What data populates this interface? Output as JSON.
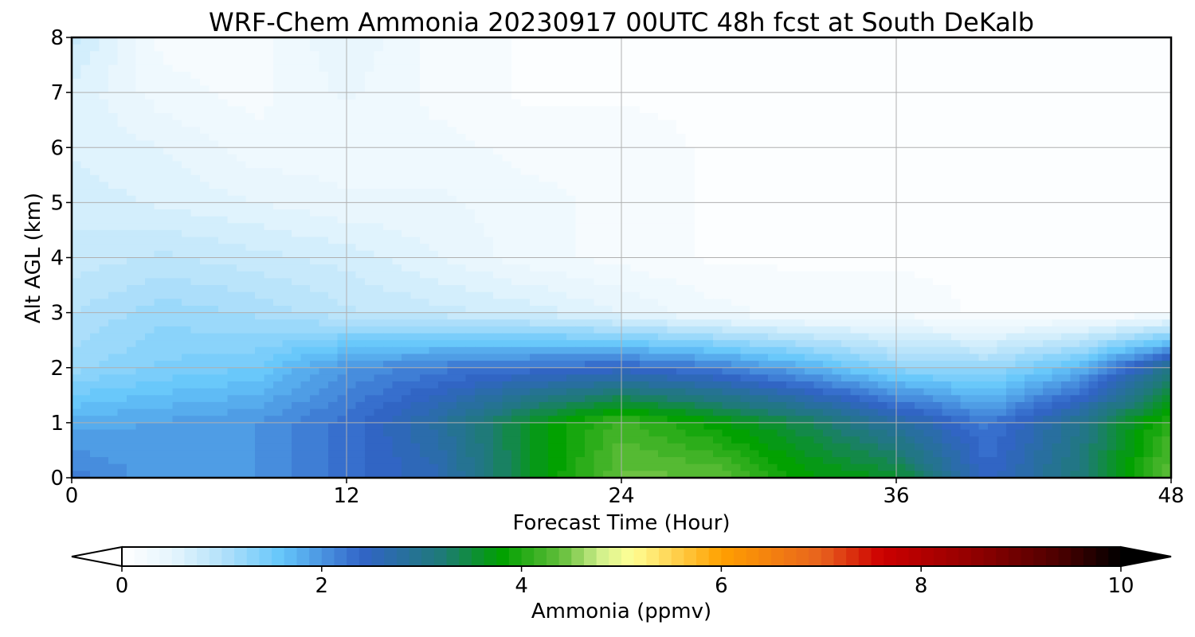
{
  "chart_data": {
    "type": "heatmap",
    "title": "WRF-Chem Ammonia  20230917 00UTC 48h fcst at South DeKalb",
    "xlabel": "Forecast Time (Hour)",
    "ylabel": "Alt AGL (km)",
    "xlim": [
      0,
      48
    ],
    "ylim": [
      0,
      8
    ],
    "x_ticks": [
      0,
      12,
      24,
      36,
      48
    ],
    "y_ticks": [
      0,
      1,
      2,
      3,
      4,
      5,
      6,
      7,
      8
    ],
    "grid": true,
    "x": [
      0,
      4,
      8,
      12,
      16,
      20,
      24,
      28,
      32,
      36,
      40,
      44,
      48
    ],
    "y": [
      0,
      1,
      2,
      3,
      4,
      5,
      6,
      7,
      8
    ],
    "z": [
      [
        2.2,
        1.9,
        2.0,
        2.3,
        2.6,
        3.6,
        4.4,
        4.4,
        3.8,
        3.6,
        2.4,
        3.2,
        4.4
      ],
      [
        1.8,
        1.9,
        2.0,
        2.3,
        2.8,
        3.6,
        4.2,
        3.8,
        3.4,
        2.8,
        2.2,
        3.0,
        4.1
      ],
      [
        1.2,
        1.4,
        1.5,
        2.0,
        2.2,
        2.3,
        2.4,
        2.2,
        1.8,
        1.3,
        1.2,
        1.7,
        3.0
      ],
      [
        1.0,
        1.2,
        1.1,
        0.9,
        0.8,
        0.7,
        0.5,
        0.3,
        0.2,
        0.2,
        0.1,
        0.1,
        0.1
      ],
      [
        0.8,
        0.9,
        0.8,
        0.7,
        0.5,
        0.3,
        0.2,
        0.1,
        0.1,
        0.1,
        0.1,
        0.1,
        0.1
      ],
      [
        0.7,
        0.6,
        0.5,
        0.4,
        0.4,
        0.3,
        0.2,
        0.1,
        0.1,
        0.1,
        0.1,
        0.1,
        0.1
      ],
      [
        0.6,
        0.5,
        0.3,
        0.3,
        0.3,
        0.2,
        0.2,
        0.1,
        0.1,
        0.1,
        0.1,
        0.1,
        0.1
      ],
      [
        0.6,
        0.3,
        0.2,
        0.4,
        0.2,
        0.1,
        0.1,
        0.1,
        0.1,
        0.1,
        0.1,
        0.1,
        0.1
      ],
      [
        0.8,
        0.2,
        0.2,
        0.5,
        0.2,
        0.1,
        0.1,
        0.1,
        0.1,
        0.1,
        0.1,
        0.1,
        0.1
      ]
    ],
    "colorbar": {
      "label": "Ammonia  (ppmv)",
      "min": 0,
      "max": 10,
      "ticks": [
        0,
        2,
        4,
        6,
        8,
        10
      ],
      "extend": "both",
      "colors": {
        "0": "#ffffff",
        "0.5": "#e6f5fd",
        "1.0": "#b4e1fa",
        "1.6": "#64c6fa",
        "2.4": "#3264c8",
        "3.2": "#1f7a78",
        "3.8": "#00a000",
        "4.4": "#64be3c",
        "4.8": "#d2f08c",
        "5.1": "#ffff96",
        "6.0": "#ffa000",
        "7.0": "#e8621e",
        "7.6": "#cd0000",
        "8.6": "#8c0000",
        "9.4": "#4a0000",
        "10": "#000000"
      }
    }
  }
}
